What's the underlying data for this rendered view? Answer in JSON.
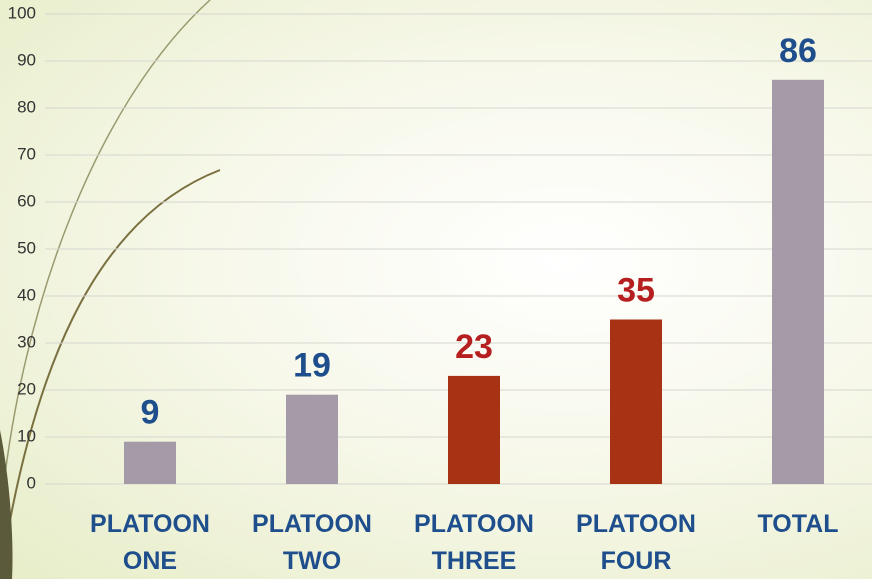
{
  "chart_data": {
    "type": "bar",
    "categories": [
      "PLATOON ONE",
      "PLATOON TWO",
      "PLATOON THREE",
      "PLATOON FOUR",
      "TOTAL"
    ],
    "values": [
      9,
      19,
      23,
      35,
      86
    ],
    "colors": [
      "#a59aa8",
      "#a59aa8",
      "#a83214",
      "#a83214",
      "#a59aa8"
    ],
    "label_colors": [
      "#1f4e8c",
      "#1f4e8c",
      "#b51f1f",
      "#b51f1f",
      "#1f4e8c"
    ],
    "ylim": [
      0,
      100
    ],
    "yticks": [
      0,
      10,
      20,
      30,
      40,
      50,
      60,
      70,
      80,
      90,
      100
    ],
    "grid": true
  }
}
